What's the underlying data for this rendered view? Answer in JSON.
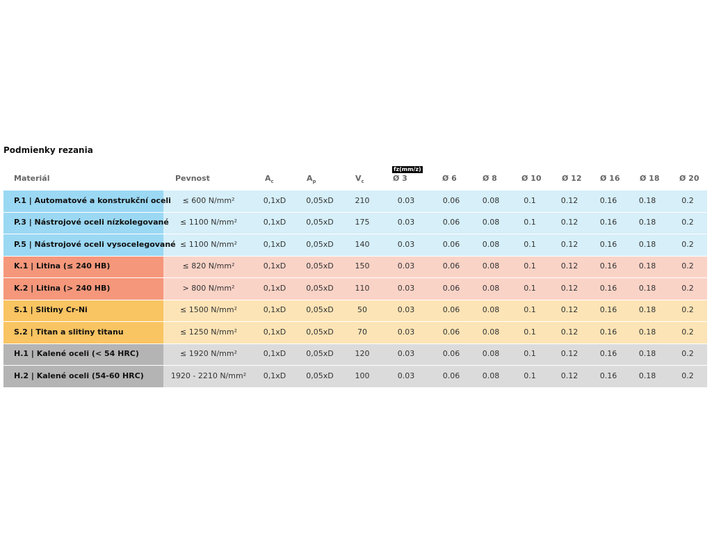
{
  "title": "Podmienky rezania",
  "table": {
    "unit_label": "fz(mm/z)",
    "columns": [
      {
        "label": "Materiál"
      },
      {
        "label": "Pevnost"
      },
      {
        "label": "A",
        "sub": "c"
      },
      {
        "label": "A",
        "sub": "p"
      },
      {
        "label": "V",
        "sub": "c"
      },
      {
        "label": "Ø 3"
      },
      {
        "label": "Ø 6"
      },
      {
        "label": "Ø 8"
      },
      {
        "label": "Ø 10"
      },
      {
        "label": "Ø 12"
      },
      {
        "label": "Ø 16"
      },
      {
        "label": "Ø 18"
      },
      {
        "label": "Ø 20"
      }
    ],
    "rows": [
      {
        "color": "#9bd8f3",
        "cell_color": "#d6eff9",
        "cells": [
          "P.1 | Automatové a konstrukční oceli",
          "≤ 600 N/mm²",
          "0,1xD",
          "0,05xD",
          "210",
          "0.03",
          "0.06",
          "0.08",
          "0.1",
          "0.12",
          "0.16",
          "0.18",
          "0.2"
        ]
      },
      {
        "color": "#9bd8f3",
        "cell_color": "#d6eff9",
        "cells": [
          "P.3 | Nástrojové oceli nízkolegované",
          "≤ 1100 N/mm²",
          "0,1xD",
          "0,05xD",
          "175",
          "0.03",
          "0.06",
          "0.08",
          "0.1",
          "0.12",
          "0.16",
          "0.18",
          "0.2"
        ]
      },
      {
        "color": "#9bd8f3",
        "cell_color": "#d6eff9",
        "cells": [
          "P.5 | Nástrojové oceli vysocelegované",
          "≤ 1100 N/mm²",
          "0,1xD",
          "0,05xD",
          "140",
          "0.03",
          "0.06",
          "0.08",
          "0.1",
          "0.12",
          "0.16",
          "0.18",
          "0.2"
        ]
      },
      {
        "color": "#f5977b",
        "cell_color": "#fad3c7",
        "cells": [
          "K.1 | Litina (≤ 240 HB)",
          "≤ 820 N/mm²",
          "0,1xD",
          "0,05xD",
          "150",
          "0.03",
          "0.06",
          "0.08",
          "0.1",
          "0.12",
          "0.16",
          "0.18",
          "0.2"
        ]
      },
      {
        "color": "#f5977b",
        "cell_color": "#fad3c7",
        "cells": [
          "K.2 | Litina (> 240 HB)",
          "> 800 N/mm²",
          "0,1xD",
          "0,05xD",
          "110",
          "0.03",
          "0.06",
          "0.08",
          "0.1",
          "0.12",
          "0.16",
          "0.18",
          "0.2"
        ]
      },
      {
        "color": "#f9c462",
        "cell_color": "#fde4b6",
        "cells": [
          "S.1 | Slitiny Cr-Ni",
          "≤ 1500 N/mm²",
          "0,1xD",
          "0,05xD",
          "50",
          "0.03",
          "0.06",
          "0.08",
          "0.1",
          "0.12",
          "0.16",
          "0.18",
          "0.2"
        ]
      },
      {
        "color": "#f9c462",
        "cell_color": "#fde4b6",
        "cells": [
          "S.2 | Titan a slitiny titanu",
          "≤ 1250 N/mm²",
          "0,1xD",
          "0,05xD",
          "70",
          "0.03",
          "0.06",
          "0.08",
          "0.1",
          "0.12",
          "0.16",
          "0.18",
          "0.2"
        ]
      },
      {
        "color": "#b4b4b4",
        "cell_color": "#dbdbdb",
        "cells": [
          "H.1 | Kalené oceli (< 54 HRC)",
          "≤ 1920 N/mm²",
          "0,1xD",
          "0,05xD",
          "120",
          "0.03",
          "0.06",
          "0.08",
          "0.1",
          "0.12",
          "0.16",
          "0.18",
          "0.2"
        ]
      },
      {
        "color": "#b4b4b4",
        "cell_color": "#dbdbdb",
        "cells": [
          "H.2 | Kalené oceli (54-60 HRC)",
          "1920 - 2210 N/mm²",
          "0,1xD",
          "0,05xD",
          "100",
          "0.03",
          "0.06",
          "0.08",
          "0.1",
          "0.12",
          "0.16",
          "0.18",
          "0.2"
        ]
      }
    ]
  }
}
